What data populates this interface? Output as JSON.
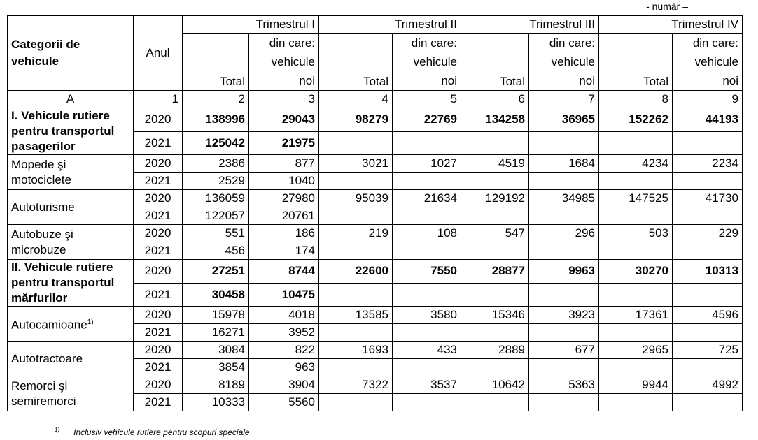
{
  "unit": "- număr –",
  "table": {
    "header": {
      "category": "Categorii de vehicule",
      "year": "Anul",
      "quarters": [
        "Trimestrul I",
        "Trimestrul II",
        "Trimestrul III",
        "Trimestrul IV"
      ],
      "subheaders": [
        "Total",
        "din care: vehicule noi"
      ]
    },
    "index_row": [
      "A",
      1,
      2,
      3,
      4,
      5,
      6,
      7,
      8,
      9
    ],
    "groups": [
      {
        "category": "I. Vehicule rutiere pentru transportul pasagerilor",
        "bold": true,
        "rows": [
          {
            "year": 2020,
            "values": [
              138996,
              29043,
              98279,
              22769,
              134258,
              36965,
              152262,
              44193
            ]
          },
          {
            "year": 2021,
            "values": [
              125042,
              21975,
              null,
              null,
              null,
              null,
              null,
              null
            ]
          }
        ]
      },
      {
        "category": "Mopede şi motociclete",
        "bold": false,
        "rows": [
          {
            "year": 2020,
            "values": [
              2386,
              877,
              3021,
              1027,
              4519,
              1684,
              4234,
              2234
            ]
          },
          {
            "year": 2021,
            "values": [
              2529,
              1040,
              null,
              null,
              null,
              null,
              null,
              null
            ]
          }
        ]
      },
      {
        "category": "Autoturisme",
        "bold": false,
        "rows": [
          {
            "year": 2020,
            "values": [
              136059,
              27980,
              95039,
              21634,
              129192,
              34985,
              147525,
              41730
            ]
          },
          {
            "year": 2021,
            "values": [
              122057,
              20761,
              null,
              null,
              null,
              null,
              null,
              null
            ]
          }
        ]
      },
      {
        "category": "Autobuze şi microbuze",
        "bold": false,
        "rows": [
          {
            "year": 2020,
            "values": [
              551,
              186,
              219,
              108,
              547,
              296,
              503,
              229
            ]
          },
          {
            "year": 2021,
            "values": [
              456,
              174,
              null,
              null,
              null,
              null,
              null,
              null
            ]
          }
        ]
      },
      {
        "category": "II. Vehicule rutiere pentru transportul mărfurilor",
        "bold": true,
        "rows": [
          {
            "year": 2020,
            "values": [
              27251,
              8744,
              22600,
              7550,
              28877,
              9963,
              30270,
              10313
            ]
          },
          {
            "year": 2021,
            "values": [
              30458,
              10475,
              null,
              null,
              null,
              null,
              null,
              null
            ]
          }
        ]
      },
      {
        "category": "Autocamioane",
        "note": "1)",
        "bold": false,
        "rows": [
          {
            "year": 2020,
            "values": [
              15978,
              4018,
              13585,
              3580,
              15346,
              3923,
              17361,
              4596
            ]
          },
          {
            "year": 2021,
            "values": [
              16271,
              3952,
              null,
              null,
              null,
              null,
              null,
              null
            ]
          }
        ]
      },
      {
        "category": "Autotractoare",
        "bold": false,
        "rows": [
          {
            "year": 2020,
            "values": [
              3084,
              822,
              1693,
              433,
              2889,
              677,
              2965,
              725
            ]
          },
          {
            "year": 2021,
            "values": [
              3854,
              963,
              null,
              null,
              null,
              null,
              null,
              null
            ]
          }
        ]
      },
      {
        "category": "Remorci şi semiremorci",
        "bold": false,
        "rows": [
          {
            "year": 2020,
            "values": [
              8189,
              3904,
              7322,
              3537,
              10642,
              5363,
              9944,
              4992
            ]
          },
          {
            "year": 2021,
            "values": [
              10333,
              5560,
              null,
              null,
              null,
              null,
              null,
              null
            ]
          }
        ]
      }
    ]
  },
  "footnote": {
    "mark": "1)",
    "text": "Inclusiv vehicule rutiere pentru scopuri speciale"
  }
}
